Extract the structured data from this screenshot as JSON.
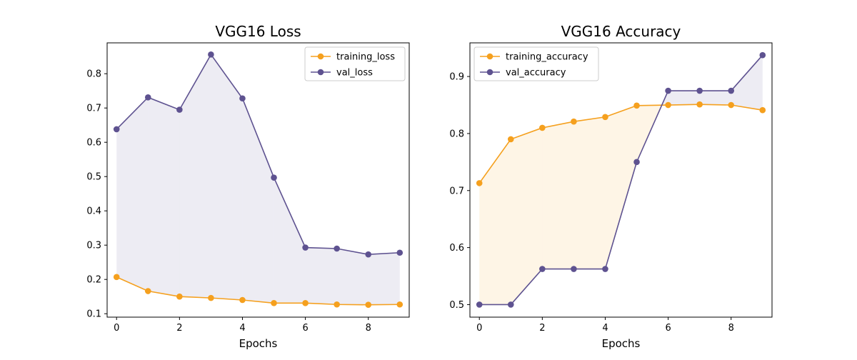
{
  "colors": {
    "training": "#f5a01e",
    "validation": "#5e5290",
    "background": "#ffffff",
    "axis": "#000000"
  },
  "chart_data": [
    {
      "type": "line",
      "title": "VGG16 Loss",
      "xlabel": "Epochs",
      "ylabel": "",
      "x": [
        0,
        1,
        2,
        3,
        4,
        5,
        6,
        7,
        8,
        9
      ],
      "xlim": [
        -0.3,
        9.3
      ],
      "ylim": [
        0.09,
        0.89
      ],
      "xticks": [
        0,
        2,
        4,
        6,
        8
      ],
      "yticks": [
        0.1,
        0.2,
        0.3,
        0.4,
        0.5,
        0.6,
        0.7,
        0.8
      ],
      "grid": false,
      "legend": "top-right",
      "fill_between": true,
      "series": [
        {
          "name": "training_loss",
          "color": "#f5a01e",
          "marker": "circle",
          "values": [
            0.207,
            0.166,
            0.15,
            0.146,
            0.14,
            0.131,
            0.131,
            0.127,
            0.126,
            0.127
          ]
        },
        {
          "name": "val_loss",
          "color": "#5e5290",
          "marker": "circle",
          "values": [
            0.638,
            0.731,
            0.695,
            0.856,
            0.728,
            0.497,
            0.293,
            0.29,
            0.273,
            0.278
          ]
        }
      ]
    },
    {
      "type": "line",
      "title": "VGG16 Accuracy",
      "xlabel": "Epochs",
      "ylabel": "",
      "x": [
        0,
        1,
        2,
        3,
        4,
        5,
        6,
        7,
        8,
        9
      ],
      "xlim": [
        -0.3,
        9.3
      ],
      "ylim": [
        0.478,
        0.959
      ],
      "xticks": [
        0,
        2,
        4,
        6,
        8
      ],
      "yticks": [
        0.5,
        0.6,
        0.7,
        0.8,
        0.9
      ],
      "grid": false,
      "legend": "top-left",
      "fill_between": true,
      "series": [
        {
          "name": "training_accuracy",
          "color": "#f5a01e",
          "marker": "circle",
          "values": [
            0.713,
            0.79,
            0.81,
            0.821,
            0.829,
            0.849,
            0.85,
            0.851,
            0.85,
            0.841
          ]
        },
        {
          "name": "val_accuracy",
          "color": "#5e5290",
          "marker": "circle",
          "values": [
            0.5,
            0.5,
            0.5625,
            0.5625,
            0.5625,
            0.75,
            0.875,
            0.875,
            0.875,
            0.9375
          ]
        }
      ]
    }
  ]
}
